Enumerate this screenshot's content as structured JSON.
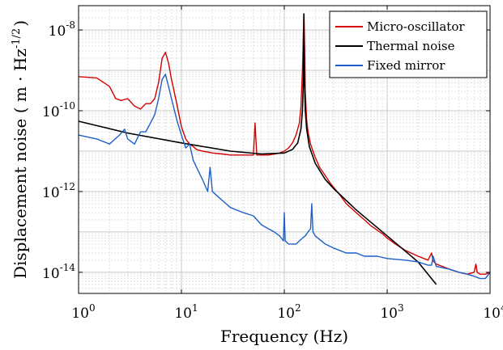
{
  "chart_data": {
    "type": "line",
    "xscale": "log",
    "yscale": "log",
    "xlim": [
      1,
      10000
    ],
    "ylim": [
      3e-15,
      4e-08
    ],
    "grid": true,
    "legend_position": "top-right",
    "xlabel": "Frequency (Hz)",
    "ylabel": {
      "main": "Displacement noise ( m · Hz",
      "exp": "-1/2",
      "close": ")"
    },
    "x_ticks": [
      {
        "value": 1,
        "base": "10",
        "exp": "0"
      },
      {
        "value": 10,
        "base": "10",
        "exp": "1"
      },
      {
        "value": 100,
        "base": "10",
        "exp": "2"
      },
      {
        "value": 1000,
        "base": "10",
        "exp": "3"
      },
      {
        "value": 10000,
        "base": "10",
        "exp": "4"
      }
    ],
    "y_ticks": [
      {
        "value": 1e-14,
        "base": "10",
        "exp": "-14"
      },
      {
        "value": 1e-12,
        "base": "10",
        "exp": "-12"
      },
      {
        "value": 1e-10,
        "base": "10",
        "exp": "-10"
      },
      {
        "value": 1e-08,
        "base": "10",
        "exp": "-8"
      }
    ],
    "series": [
      {
        "name": "Micro-oscillator",
        "color": "#d40000",
        "x": [
          1,
          1.5,
          2,
          2.3,
          2.6,
          3,
          3.5,
          4,
          4.5,
          5,
          5.5,
          6,
          6.5,
          7,
          7.5,
          8,
          8.5,
          9,
          10,
          11,
          12,
          13,
          14,
          16,
          18,
          20,
          25,
          30,
          40,
          50,
          52,
          54,
          60,
          70,
          80,
          90,
          100,
          110,
          120,
          130,
          140,
          145,
          150,
          153,
          155,
          157,
          160,
          165,
          170,
          180,
          190,
          200,
          220,
          250,
          280,
          300,
          350,
          400,
          500,
          600,
          700,
          800,
          900,
          1000,
          1200,
          1500,
          2000,
          2500,
          2700,
          2800,
          3000,
          4000,
          5000,
          6000,
          7000,
          7300,
          7500,
          8000,
          9000,
          10000
        ],
        "y": [
          7e-10,
          6.5e-10,
          4e-10,
          2e-10,
          1.8e-10,
          2e-10,
          1.3e-10,
          1.1e-10,
          1.5e-10,
          1.5e-10,
          2e-10,
          5e-10,
          2e-09,
          2.8e-09,
          1.5e-09,
          6e-10,
          3e-10,
          1.5e-10,
          4e-11,
          2e-11,
          1.5e-11,
          1.3e-11,
          1.1e-11,
          1e-11,
          9.5e-12,
          9e-12,
          8.5e-12,
          8e-12,
          8e-12,
          8e-12,
          5e-11,
          8e-12,
          8e-12,
          8e-12,
          8.5e-12,
          9e-12,
          1e-11,
          1.2e-11,
          1.6e-11,
          2.5e-11,
          5e-11,
          1.2e-10,
          1e-09,
          8e-09,
          2.5e-08,
          6e-09,
          3e-10,
          6e-11,
          3e-11,
          1.5e-11,
          1e-11,
          7e-12,
          4e-12,
          2.5e-12,
          1.6e-12,
          1.3e-12,
          8e-13,
          5e-13,
          3e-13,
          2e-13,
          1.4e-13,
          1.1e-13,
          9e-14,
          7e-14,
          5e-14,
          3.5e-14,
          2.5e-14,
          2e-14,
          3e-14,
          1.9e-14,
          1.6e-14,
          1.2e-14,
          1e-14,
          9e-15,
          1e-14,
          1.6e-14,
          1e-14,
          9e-15,
          9e-15,
          1e-14
        ]
      },
      {
        "name": "Thermal noise",
        "color": "#000000",
        "x": [
          1,
          3,
          10,
          30,
          60,
          100,
          120,
          135,
          145,
          150,
          153,
          155,
          157,
          160,
          165,
          175,
          200,
          250,
          300,
          500,
          1000,
          2000,
          3000
        ],
        "y": [
          5.5e-11,
          2.8e-11,
          1.6e-11,
          1e-11,
          8.5e-12,
          9e-12,
          1.1e-11,
          1.6e-11,
          3.5e-11,
          1e-10,
          5e-10,
          2.5e-08,
          5e-10,
          1e-10,
          3.5e-11,
          1.3e-11,
          5e-12,
          2e-12,
          1.2e-12,
          3.5e-13,
          8e-14,
          1.8e-14,
          5e-15
        ]
      },
      {
        "name": "Fixed mirror",
        "color": "#1e5fc8",
        "x": [
          1,
          1.5,
          2,
          2.5,
          2.8,
          3,
          3.5,
          4,
          4.5,
          5,
          5.5,
          6,
          6.5,
          7,
          7.5,
          8,
          9,
          10,
          11,
          12,
          13,
          14,
          16,
          18,
          19,
          20,
          22,
          25,
          30,
          40,
          50,
          60,
          70,
          80,
          90,
          98,
          100,
          102,
          110,
          130,
          150,
          160,
          170,
          180,
          185,
          190,
          200,
          250,
          300,
          400,
          500,
          600,
          800,
          1000,
          1500,
          2000,
          2500,
          2700,
          2800,
          3000,
          4000,
          5000,
          6000,
          7000,
          8000,
          9000,
          10000
        ],
        "y": [
          2.5e-11,
          2e-11,
          1.5e-11,
          2.5e-11,
          3.5e-11,
          2e-11,
          1.5e-11,
          3e-11,
          3e-11,
          5e-11,
          8e-11,
          2e-10,
          6e-10,
          8e-10,
          4e-10,
          2e-10,
          6e-11,
          2.5e-11,
          1.2e-11,
          1.5e-11,
          6e-12,
          4e-12,
          2e-12,
          1e-12,
          4e-12,
          1e-12,
          8e-13,
          6e-13,
          4e-13,
          3e-13,
          2.5e-13,
          1.5e-13,
          1.2e-13,
          1e-13,
          8e-14,
          6e-14,
          3e-13,
          6e-14,
          5e-14,
          5e-14,
          7e-14,
          8e-14,
          1e-13,
          1.2e-13,
          5e-13,
          1e-13,
          8e-14,
          5e-14,
          4e-14,
          3e-14,
          3e-14,
          2.5e-14,
          2.5e-14,
          2.2e-14,
          2e-14,
          1.8e-14,
          1.5e-14,
          1.5e-14,
          2.5e-14,
          1.4e-14,
          1.2e-14,
          1e-14,
          9e-15,
          8e-15,
          7e-15,
          7e-15,
          1e-14
        ]
      }
    ]
  }
}
